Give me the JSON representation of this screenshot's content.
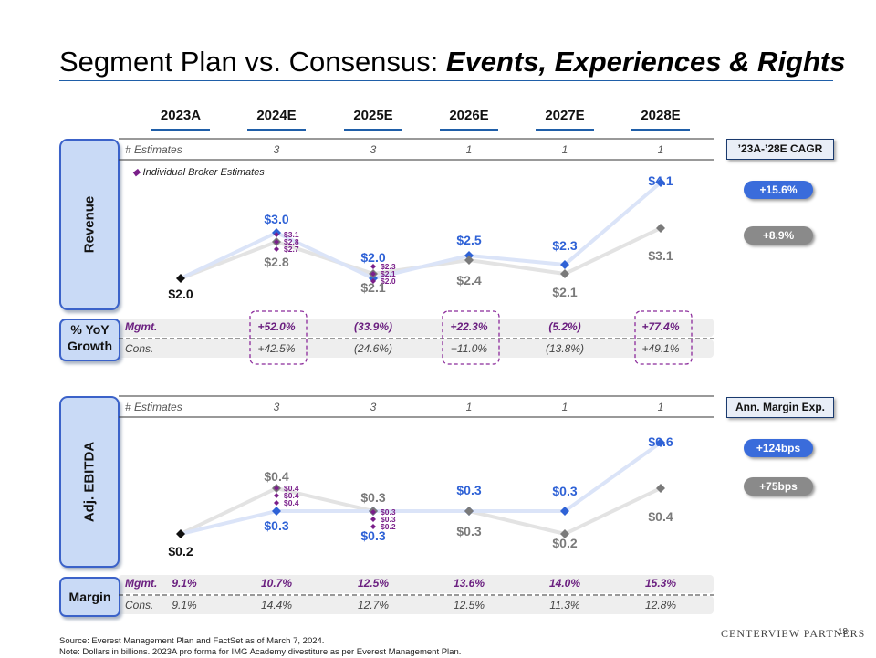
{
  "title": {
    "main": "Segment Plan vs. Consensus: ",
    "emph": "Events, Experiences & Rights"
  },
  "years": [
    "2023A",
    "2024E",
    "2025E",
    "2026E",
    "2027E",
    "2028E"
  ],
  "revenue": {
    "tab_label": "Revenue",
    "estimates_label": "# Estimates",
    "estimates": [
      "",
      "3",
      "3",
      "1",
      "1",
      "1"
    ],
    "legend": "Individual Broker Estimates",
    "cagr_label": "’23A-’28E CAGR",
    "mgmt_cagr": "+15.6%",
    "cons_cagr": "+8.9%"
  },
  "growth": {
    "label_line1": "% YoY",
    "label_line2": "Growth",
    "mgmt_label": "Mgmt.",
    "cons_label": "Cons.",
    "mgmt": [
      "",
      "+52.0%",
      "(33.9%)",
      "+22.3%",
      "(5.2%)",
      "+77.4%"
    ],
    "cons": [
      "",
      "+42.5%",
      "(24.6%)",
      "+11.0%",
      "(13.8%)",
      "+49.1%"
    ]
  },
  "ebitda": {
    "tab_label": "Adj. EBITDA",
    "estimates_label": "# Estimates",
    "estimates": [
      "",
      "3",
      "3",
      "1",
      "1",
      "1"
    ],
    "margin_label": "Ann. Margin Exp.",
    "mgmt_exp": "+124bps",
    "cons_exp": "+75bps"
  },
  "margin": {
    "label": "Margin",
    "mgmt_label": "Mgmt.",
    "cons_label": "Cons.",
    "mgmt": [
      "9.1%",
      "10.7%",
      "12.5%",
      "13.6%",
      "14.0%",
      "15.3%"
    ],
    "cons": [
      "9.1%",
      "14.4%",
      "12.7%",
      "12.5%",
      "11.3%",
      "12.8%"
    ]
  },
  "footer": {
    "source": "Source:  Everest Management Plan and FactSet as of March 7, 2024.",
    "note": "Note:     Dollars in billions. 2023A pro forma for IMG Academy divestiture as per Everest Management Plan."
  },
  "logo": "CENTERVIEW PARTNERS",
  "page_number": "18",
  "chart_data": [
    {
      "type": "line",
      "title": "Revenue",
      "categories": [
        "2023A",
        "2024E",
        "2025E",
        "2026E",
        "2027E",
        "2028E"
      ],
      "series": [
        {
          "name": "Mgmt.",
          "values": [
            2.0,
            3.0,
            2.0,
            2.5,
            2.3,
            4.1
          ],
          "labels": [
            "$2.0",
            "$3.0",
            "$2.0",
            "$2.5",
            "$2.3",
            "$4.1"
          ],
          "color": "#2f62d6"
        },
        {
          "name": "Cons.",
          "values": [
            2.0,
            2.8,
            2.1,
            2.4,
            2.1,
            3.1
          ],
          "labels": [
            "",
            "$2.8",
            "$2.1",
            "$2.4",
            "$2.1",
            "$3.1"
          ],
          "color": "#7a7a7a"
        }
      ],
      "broker_estimates": [
        {
          "category": "2024E",
          "values": [
            3.1,
            2.8,
            2.7
          ],
          "labels": [
            "$3.1",
            "$2.8",
            "$2.7"
          ]
        },
        {
          "category": "2025E",
          "values": [
            2.3,
            2.1,
            2.0
          ],
          "labels": [
            "$2.3",
            "$2.1",
            "$2.0"
          ]
        }
      ],
      "ylim": [
        1.5,
        4.5
      ],
      "colors": {
        "mgmt": "#2f62d6",
        "cons": "#7a7a7a",
        "broker": "#7a1f8a",
        "base": "#111111"
      }
    },
    {
      "type": "line",
      "title": "Adj. EBITDA",
      "categories": [
        "2023A",
        "2024E",
        "2025E",
        "2026E",
        "2027E",
        "2028E"
      ],
      "series": [
        {
          "name": "Mgmt.",
          "values": [
            0.2,
            0.3,
            0.3,
            0.3,
            0.3,
            0.6
          ],
          "labels": [
            "$0.2",
            "$0.3",
            "$0.3",
            "$0.3",
            "$0.3",
            "$0.6"
          ],
          "color": "#2f62d6"
        },
        {
          "name": "Cons.",
          "values": [
            0.2,
            0.4,
            0.3,
            0.3,
            0.2,
            0.4
          ],
          "labels": [
            "",
            "$0.4",
            "$0.3",
            "$0.3",
            "$0.2",
            "$0.4"
          ],
          "color": "#7a7a7a"
        }
      ],
      "broker_estimates": [
        {
          "category": "2024E",
          "values": [
            0.4,
            0.4,
            0.4
          ],
          "labels": [
            "$0.4",
            "$0.4",
            "$0.4"
          ]
        },
        {
          "category": "2025E",
          "values": [
            0.3,
            0.3,
            0.2
          ],
          "labels": [
            "$0.3",
            "$0.3",
            "$0.2"
          ]
        }
      ],
      "ylim": [
        0.1,
        0.7
      ],
      "colors": {
        "mgmt": "#2f62d6",
        "cons": "#7a7a7a",
        "broker": "#7a1f8a",
        "base": "#111111"
      }
    }
  ]
}
